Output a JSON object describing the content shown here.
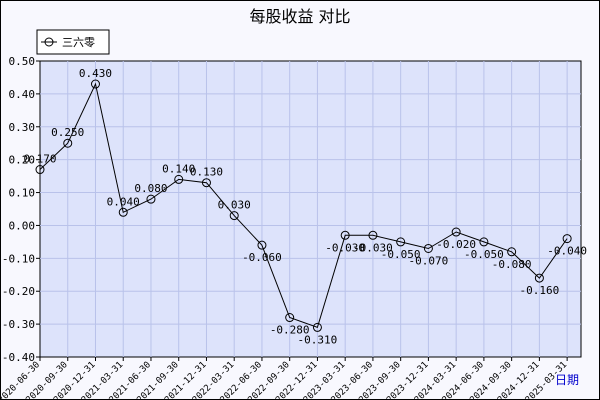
{
  "chart_data": {
    "type": "line",
    "title": "每股收益  对比",
    "xlabel": "日期",
    "ylabel": "",
    "ylim": [
      -0.4,
      0.5
    ],
    "yticks": [
      "0.50",
      "0.40",
      "0.30",
      "0.20",
      "0.10",
      "0.00",
      "-0.10",
      "-0.20",
      "-0.30",
      "-0.40"
    ],
    "categories": [
      "2020-06-30",
      "2020-09-30",
      "2020-12-31",
      "2021-03-31",
      "2021-06-30",
      "2021-09-30",
      "2021-12-31",
      "2022-03-31",
      "2022-06-30",
      "2022-09-30",
      "2022-12-31",
      "2023-03-31",
      "2023-06-30",
      "2023-09-30",
      "2023-12-31",
      "2024-03-31",
      "2024-06-30",
      "2024-09-30",
      "2024-12-31",
      "2025-03-31"
    ],
    "series": [
      {
        "name": "三六零",
        "values": [
          0.17,
          0.25,
          0.43,
          0.04,
          0.08,
          0.14,
          0.13,
          0.03,
          -0.06,
          -0.28,
          -0.31,
          -0.03,
          -0.03,
          -0.05,
          -0.07,
          -0.02,
          -0.05,
          -0.08,
          -0.16,
          -0.04
        ],
        "labels": [
          "0.170",
          "0.250",
          "0.430",
          "0.040",
          "0.080",
          "0.140",
          "0.130",
          "0.030",
          "-0.060",
          "-0.280",
          "-0.310",
          "-0.030",
          "-0.030",
          "-0.050",
          "-0.070",
          "-0.020",
          "-0.050",
          "-0.080",
          "-0.160",
          "-0.040"
        ]
      }
    ],
    "grid": true,
    "legend_position": "top-left",
    "colors": {
      "plot_bg": "#dde3fb",
      "page_bg": "#f8f8fe",
      "grid": "#b9c2ea",
      "line": "#000000"
    }
  }
}
